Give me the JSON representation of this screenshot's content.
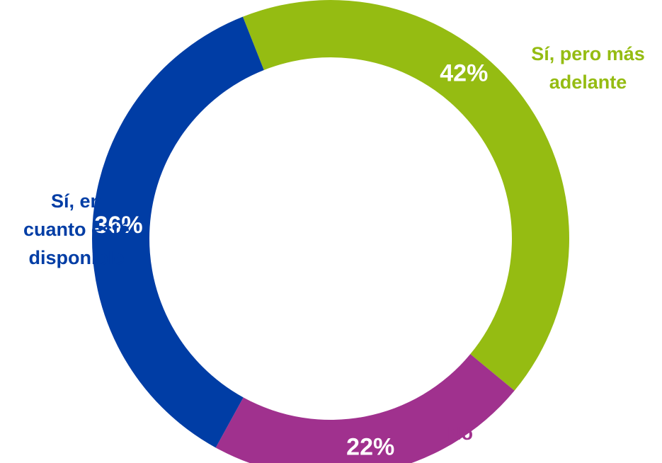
{
  "chart_data": {
    "type": "pie",
    "style": "donut",
    "categories": [
      "Sí, pero más adelante",
      "No",
      "Sí, en cuanto esté disponible"
    ],
    "values": [
      42,
      22,
      36
    ],
    "value_labels": [
      "42%",
      "22%",
      "36%"
    ],
    "colors": [
      "#95BC12",
      "#A0318E",
      "#003DA5"
    ],
    "label_lines": [
      [
        "Sí, pero más",
        "adelante"
      ],
      [
        "No"
      ],
      [
        "Sí, en",
        "cuanto esté",
        "disponible"
      ]
    ]
  }
}
